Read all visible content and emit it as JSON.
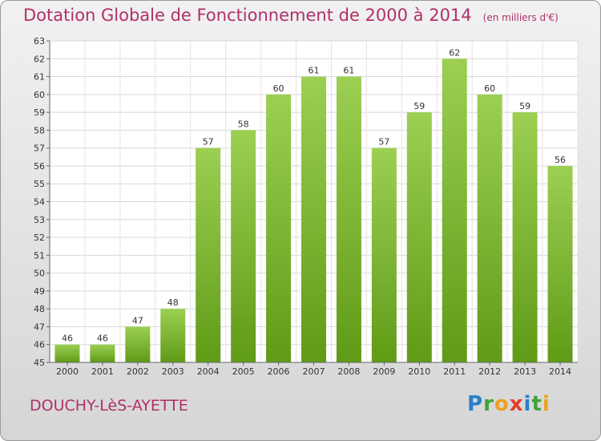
{
  "title": "Dotation Globale de Fonctionnement de 2000 à 2014",
  "subtitle": "(en milliers d'€)",
  "commune": "DOUCHY-LèS-AYETTE",
  "logo": {
    "p": "P",
    "r": "r",
    "o": "o",
    "x": "x",
    "i": "i",
    "t": "t",
    "i2": "i"
  },
  "colors": {
    "title": "#b0306a",
    "bar_top": "#9ccf52",
    "bar_bottom": "#5f9b17"
  },
  "chart_data": {
    "type": "bar",
    "categories": [
      "2000",
      "2001",
      "2002",
      "2003",
      "2004",
      "2005",
      "2006",
      "2007",
      "2008",
      "2009",
      "2010",
      "2011",
      "2012",
      "2013",
      "2014"
    ],
    "values": [
      46,
      46,
      47,
      48,
      57,
      58,
      60,
      61,
      61,
      57,
      59,
      62,
      60,
      59,
      56
    ],
    "ylim": [
      45,
      63
    ],
    "yticks": [
      45,
      46,
      47,
      48,
      49,
      50,
      51,
      52,
      53,
      54,
      55,
      56,
      57,
      58,
      59,
      60,
      61,
      62,
      63
    ],
    "grid": true,
    "data_labels": true
  }
}
